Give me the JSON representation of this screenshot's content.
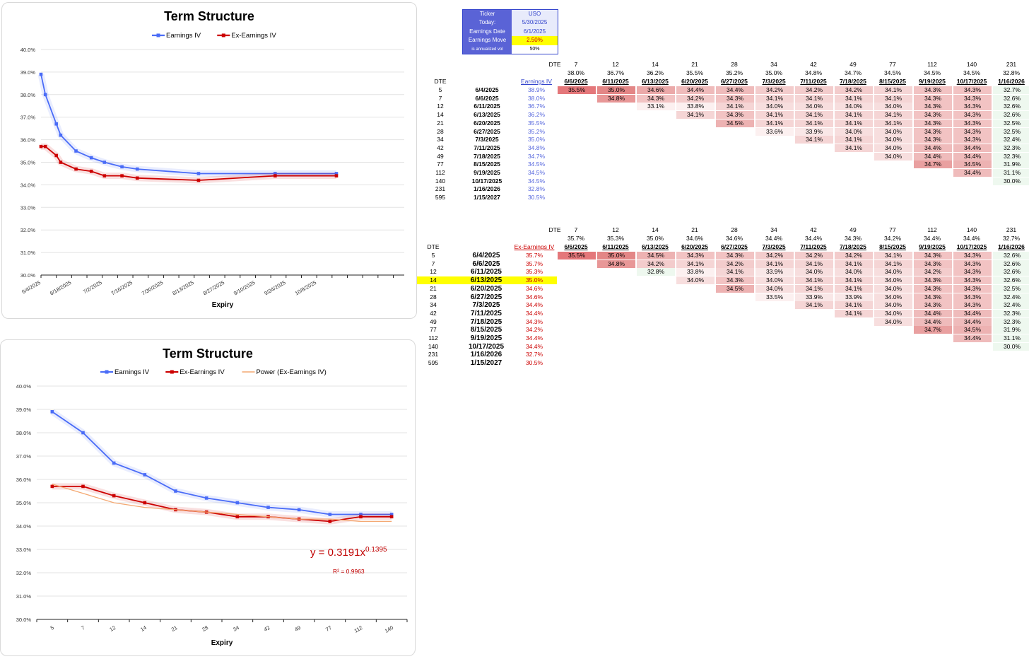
{
  "chart_data": [
    {
      "type": "line",
      "title": "Term Structure",
      "xlabel": "Expiry",
      "ylim": [
        0.3,
        0.4
      ],
      "y_ticks": [
        "30.0%",
        "31.0%",
        "32.0%",
        "33.0%",
        "34.0%",
        "35.0%",
        "36.0%",
        "37.0%",
        "38.0%",
        "39.0%",
        "40.0%"
      ],
      "x_ticks": [
        "6/4/2025",
        "6/18/2025",
        "7/2/2025",
        "7/16/2025",
        "7/30/2025",
        "8/13/2025",
        "8/27/2025",
        "9/10/2025",
        "9/24/2025",
        "10/8/2025"
      ],
      "x_dates": [
        "6/4/2025",
        "6/6/2025",
        "6/11/2025",
        "6/13/2025",
        "6/20/2025",
        "6/27/2025",
        "7/3/2025",
        "7/11/2025",
        "7/18/2025",
        "8/15/2025",
        "9/19/2025",
        "10/17/2025"
      ],
      "series": [
        {
          "name": "Earnings IV",
          "color": "#4a6cf7",
          "values": [
            0.389,
            0.38,
            0.367,
            0.362,
            0.355,
            0.352,
            0.35,
            0.348,
            0.347,
            0.345,
            0.345,
            0.345
          ]
        },
        {
          "name": "Ex-Earnings IV",
          "color": "#cc0000",
          "values": [
            0.357,
            0.357,
            0.353,
            0.35,
            0.347,
            0.346,
            0.344,
            0.344,
            0.343,
            0.342,
            0.344,
            0.344
          ]
        }
      ],
      "grid": true,
      "legend": "top"
    },
    {
      "type": "line",
      "title": "Term Structure",
      "xlabel": "Expiry",
      "ylim": [
        0.3,
        0.4
      ],
      "y_ticks": [
        "30.0%",
        "31.0%",
        "32.0%",
        "33.0%",
        "34.0%",
        "35.0%",
        "36.0%",
        "37.0%",
        "38.0%",
        "39.0%",
        "40.0%"
      ],
      "categories": [
        "5",
        "7",
        "12",
        "14",
        "21",
        "28",
        "34",
        "42",
        "49",
        "77",
        "112",
        "140"
      ],
      "series": [
        {
          "name": "Earnings IV",
          "color": "#4a6cf7",
          "values": [
            0.389,
            0.38,
            0.367,
            0.362,
            0.355,
            0.352,
            0.35,
            0.348,
            0.347,
            0.345,
            0.345,
            0.345
          ]
        },
        {
          "name": "Ex-Earnings IV",
          "color": "#cc0000",
          "values": [
            0.357,
            0.357,
            0.353,
            0.35,
            0.347,
            0.346,
            0.344,
            0.344,
            0.343,
            0.342,
            0.344,
            0.344
          ]
        },
        {
          "name": "Power (Ex-Earnings IV)",
          "color": "#f4a872",
          "values": [
            0.358,
            0.354,
            0.35,
            0.348,
            0.347,
            0.346,
            0.345,
            0.344,
            0.343,
            0.343,
            0.342,
            0.342
          ]
        }
      ],
      "trendline": {
        "equation_base": "y = 0.3191x",
        "equation_exp": "0.1395",
        "r2": "R² = 0.9963"
      },
      "grid": true,
      "legend": "top"
    }
  ],
  "info": [
    {
      "k": "Ticker",
      "v": "USO"
    },
    {
      "k": "Today:",
      "v": "5/30/2025"
    },
    {
      "k": "Earnings Date",
      "v": "6/1/2025"
    },
    {
      "k": "Earnings Move",
      "v": "2.50%"
    },
    {
      "k": "is annualized vol",
      "v": "50%"
    }
  ],
  "table1": {
    "dte_label": "DTE",
    "col_label": "Earnings IV",
    "col_dte": [
      "7",
      "12",
      "14",
      "21",
      "28",
      "34",
      "42",
      "49",
      "77",
      "112",
      "140",
      "231"
    ],
    "col_vol": [
      "38.0%",
      "36.7%",
      "36.2%",
      "35.5%",
      "35.2%",
      "35.0%",
      "34.8%",
      "34.7%",
      "34.5%",
      "34.5%",
      "34.5%",
      "32.8%"
    ],
    "col_dates": [
      "6/6/2025",
      "6/11/2025",
      "6/13/2025",
      "6/20/2025",
      "6/27/2025",
      "7/3/2025",
      "7/11/2025",
      "7/18/2025",
      "8/15/2025",
      "9/19/2025",
      "10/17/2025",
      "1/16/2026"
    ],
    "rows": [
      {
        "dte": "5",
        "date": "6/4/2025",
        "iv": "38.9%",
        "f": [
          "35.5%",
          "35.0%",
          "34.6%",
          "34.4%",
          "34.4%",
          "34.2%",
          "34.2%",
          "34.2%",
          "34.1%",
          "34.3%",
          "34.3%",
          "32.7%"
        ]
      },
      {
        "dte": "7",
        "date": "6/6/2025",
        "iv": "38.0%",
        "f": [
          "",
          "34.8%",
          "34.3%",
          "34.2%",
          "34.3%",
          "34.1%",
          "34.1%",
          "34.1%",
          "34.1%",
          "34.3%",
          "34.3%",
          "32.6%"
        ]
      },
      {
        "dte": "12",
        "date": "6/11/2025",
        "iv": "36.7%",
        "f": [
          "",
          "",
          "33.1%",
          "33.8%",
          "34.1%",
          "34.0%",
          "34.0%",
          "34.0%",
          "34.0%",
          "34.3%",
          "34.3%",
          "32.6%"
        ]
      },
      {
        "dte": "14",
        "date": "6/13/2025",
        "iv": "36.2%",
        "f": [
          "",
          "",
          "",
          "34.1%",
          "34.3%",
          "34.1%",
          "34.1%",
          "34.1%",
          "34.1%",
          "34.3%",
          "34.3%",
          "32.6%"
        ]
      },
      {
        "dte": "21",
        "date": "6/20/2025",
        "iv": "35.5%",
        "f": [
          "",
          "",
          "",
          "",
          "34.5%",
          "34.1%",
          "34.1%",
          "34.1%",
          "34.1%",
          "34.3%",
          "34.3%",
          "32.5%"
        ]
      },
      {
        "dte": "28",
        "date": "6/27/2025",
        "iv": "35.2%",
        "f": [
          "",
          "",
          "",
          "",
          "",
          "33.6%",
          "33.9%",
          "34.0%",
          "34.0%",
          "34.3%",
          "34.3%",
          "32.5%"
        ]
      },
      {
        "dte": "34",
        "date": "7/3/2025",
        "iv": "35.0%",
        "f": [
          "",
          "",
          "",
          "",
          "",
          "",
          "34.1%",
          "34.1%",
          "34.0%",
          "34.3%",
          "34.3%",
          "32.4%"
        ]
      },
      {
        "dte": "42",
        "date": "7/11/2025",
        "iv": "34.8%",
        "f": [
          "",
          "",
          "",
          "",
          "",
          "",
          "",
          "34.1%",
          "34.0%",
          "34.4%",
          "34.4%",
          "32.3%"
        ]
      },
      {
        "dte": "49",
        "date": "7/18/2025",
        "iv": "34.7%",
        "f": [
          "",
          "",
          "",
          "",
          "",
          "",
          "",
          "",
          "34.0%",
          "34.4%",
          "34.4%",
          "32.3%"
        ]
      },
      {
        "dte": "77",
        "date": "8/15/2025",
        "iv": "34.5%",
        "f": [
          "",
          "",
          "",
          "",
          "",
          "",
          "",
          "",
          "",
          "34.7%",
          "34.5%",
          "31.9%"
        ]
      },
      {
        "dte": "112",
        "date": "9/19/2025",
        "iv": "34.5%",
        "f": [
          "",
          "",
          "",
          "",
          "",
          "",
          "",
          "",
          "",
          "",
          "34.4%",
          "31.1%"
        ]
      },
      {
        "dte": "140",
        "date": "10/17/2025",
        "iv": "34.5%",
        "f": [
          "",
          "",
          "",
          "",
          "",
          "",
          "",
          "",
          "",
          "",
          "",
          "30.0%"
        ]
      },
      {
        "dte": "231",
        "date": "1/16/2026",
        "iv": "32.8%",
        "f": [
          "",
          "",
          "",
          "",
          "",
          "",
          "",
          "",
          "",
          "",
          "",
          ""
        ]
      },
      {
        "dte": "595",
        "date": "1/15/2027",
        "iv": "30.5%",
        "f": [
          "",
          "",
          "",
          "",
          "",
          "",
          "",
          "",
          "",
          "",
          "",
          ""
        ]
      }
    ]
  },
  "table2": {
    "dte_label": "DTE",
    "col_label": "Ex-Earnings IV",
    "col_dte": [
      "7",
      "12",
      "14",
      "21",
      "28",
      "34",
      "42",
      "49",
      "77",
      "112",
      "140",
      "231"
    ],
    "col_vol": [
      "35.7%",
      "35.3%",
      "35.0%",
      "34.6%",
      "34.6%",
      "34.4%",
      "34.4%",
      "34.3%",
      "34.2%",
      "34.4%",
      "34.4%",
      "32.7%"
    ],
    "col_dates": [
      "6/6/2025",
      "6/11/2025",
      "6/13/2025",
      "6/20/2025",
      "6/27/2025",
      "7/3/2025",
      "7/11/2025",
      "7/18/2025",
      "8/15/2025",
      "9/19/2025",
      "10/17/2025",
      "1/16/2026"
    ],
    "rows": [
      {
        "dte": "5",
        "date": "6/4/2025",
        "iv": "35.7%",
        "f": [
          "35.5%",
          "35.0%",
          "34.5%",
          "34.3%",
          "34.3%",
          "34.2%",
          "34.2%",
          "34.2%",
          "34.1%",
          "34.3%",
          "34.3%",
          "32.6%"
        ]
      },
      {
        "dte": "7",
        "date": "6/6/2025",
        "iv": "35.7%",
        "f": [
          "",
          "34.8%",
          "34.2%",
          "34.1%",
          "34.2%",
          "34.1%",
          "34.1%",
          "34.1%",
          "34.1%",
          "34.3%",
          "34.3%",
          "32.6%"
        ]
      },
      {
        "dte": "12",
        "date": "6/11/2025",
        "iv": "35.3%",
        "f": [
          "",
          "",
          "32.8%",
          "33.8%",
          "34.1%",
          "33.9%",
          "34.0%",
          "34.0%",
          "34.0%",
          "34.2%",
          "34.3%",
          "32.6%"
        ]
      },
      {
        "dte": "14",
        "date": "6/13/2025",
        "iv": "35.0%",
        "f": [
          "",
          "",
          "",
          "34.0%",
          "34.3%",
          "34.0%",
          "34.1%",
          "34.1%",
          "34.0%",
          "34.3%",
          "34.3%",
          "32.6%"
        ]
      },
      {
        "dte": "21",
        "date": "6/20/2025",
        "iv": "34.6%",
        "f": [
          "",
          "",
          "",
          "",
          "34.5%",
          "34.0%",
          "34.1%",
          "34.1%",
          "34.0%",
          "34.3%",
          "34.3%",
          "32.5%"
        ]
      },
      {
        "dte": "28",
        "date": "6/27/2025",
        "iv": "34.6%",
        "f": [
          "",
          "",
          "",
          "",
          "",
          "33.5%",
          "33.9%",
          "33.9%",
          "34.0%",
          "34.3%",
          "34.3%",
          "32.4%"
        ]
      },
      {
        "dte": "34",
        "date": "7/3/2025",
        "iv": "34.4%",
        "f": [
          "",
          "",
          "",
          "",
          "",
          "",
          "34.1%",
          "34.1%",
          "34.0%",
          "34.3%",
          "34.3%",
          "32.4%"
        ]
      },
      {
        "dte": "42",
        "date": "7/11/2025",
        "iv": "34.4%",
        "f": [
          "",
          "",
          "",
          "",
          "",
          "",
          "",
          "34.1%",
          "34.0%",
          "34.4%",
          "34.4%",
          "32.3%"
        ]
      },
      {
        "dte": "49",
        "date": "7/18/2025",
        "iv": "34.3%",
        "f": [
          "",
          "",
          "",
          "",
          "",
          "",
          "",
          "",
          "34.0%",
          "34.4%",
          "34.4%",
          "32.3%"
        ]
      },
      {
        "dte": "77",
        "date": "8/15/2025",
        "iv": "34.2%",
        "f": [
          "",
          "",
          "",
          "",
          "",
          "",
          "",
          "",
          "",
          "34.7%",
          "34.5%",
          "31.9%"
        ]
      },
      {
        "dte": "112",
        "date": "9/19/2025",
        "iv": "34.4%",
        "f": [
          "",
          "",
          "",
          "",
          "",
          "",
          "",
          "",
          "",
          "",
          "34.4%",
          "31.1%"
        ]
      },
      {
        "dte": "140",
        "date": "10/17/2025",
        "iv": "34.4%",
        "f": [
          "",
          "",
          "",
          "",
          "",
          "",
          "",
          "",
          "",
          "",
          "",
          "30.0%"
        ]
      },
      {
        "dte": "231",
        "date": "1/16/2026",
        "iv": "32.7%",
        "f": [
          "",
          "",
          "",
          "",
          "",
          "",
          "",
          "",
          "",
          "",
          "",
          ""
        ]
      },
      {
        "dte": "595",
        "date": "1/15/2027",
        "iv": "30.5%",
        "f": [
          "",
          "",
          "",
          "",
          "",
          "",
          "",
          "",
          "",
          "",
          "",
          ""
        ]
      }
    ]
  }
}
